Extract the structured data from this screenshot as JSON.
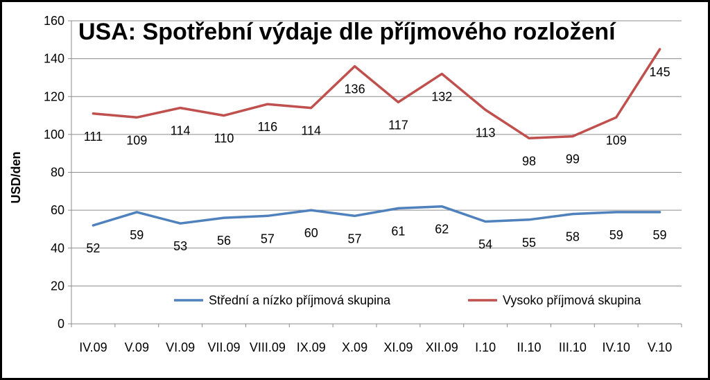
{
  "chart_data": {
    "type": "line",
    "title": "USA: Spotřební výdaje dle příjmového rozložení",
    "ylabel": "USD/den",
    "xlabel": "",
    "ylim": [
      0,
      160
    ],
    "yticks": [
      0,
      20,
      40,
      60,
      80,
      100,
      120,
      140,
      160
    ],
    "grid": true,
    "legend": "bottom-center",
    "categories": [
      "IV.09",
      "V.09",
      "VI.09",
      "VII.09",
      "VIII.09",
      "IX.09",
      "X.09",
      "XI.09",
      "XII.09",
      "I.10",
      "II.10",
      "III.10",
      "IV.10",
      "V.10"
    ],
    "series": [
      {
        "name": "Střední a nízko příjmová skupina",
        "color": "#4F81BD",
        "values": [
          52,
          59,
          53,
          56,
          57,
          60,
          57,
          61,
          62,
          54,
          55,
          58,
          59,
          59
        ]
      },
      {
        "name": "Vysoko příjmová skupina",
        "color": "#C0504D",
        "values": [
          111,
          109,
          114,
          110,
          116,
          114,
          136,
          117,
          132,
          113,
          98,
          99,
          109,
          145
        ]
      }
    ]
  }
}
